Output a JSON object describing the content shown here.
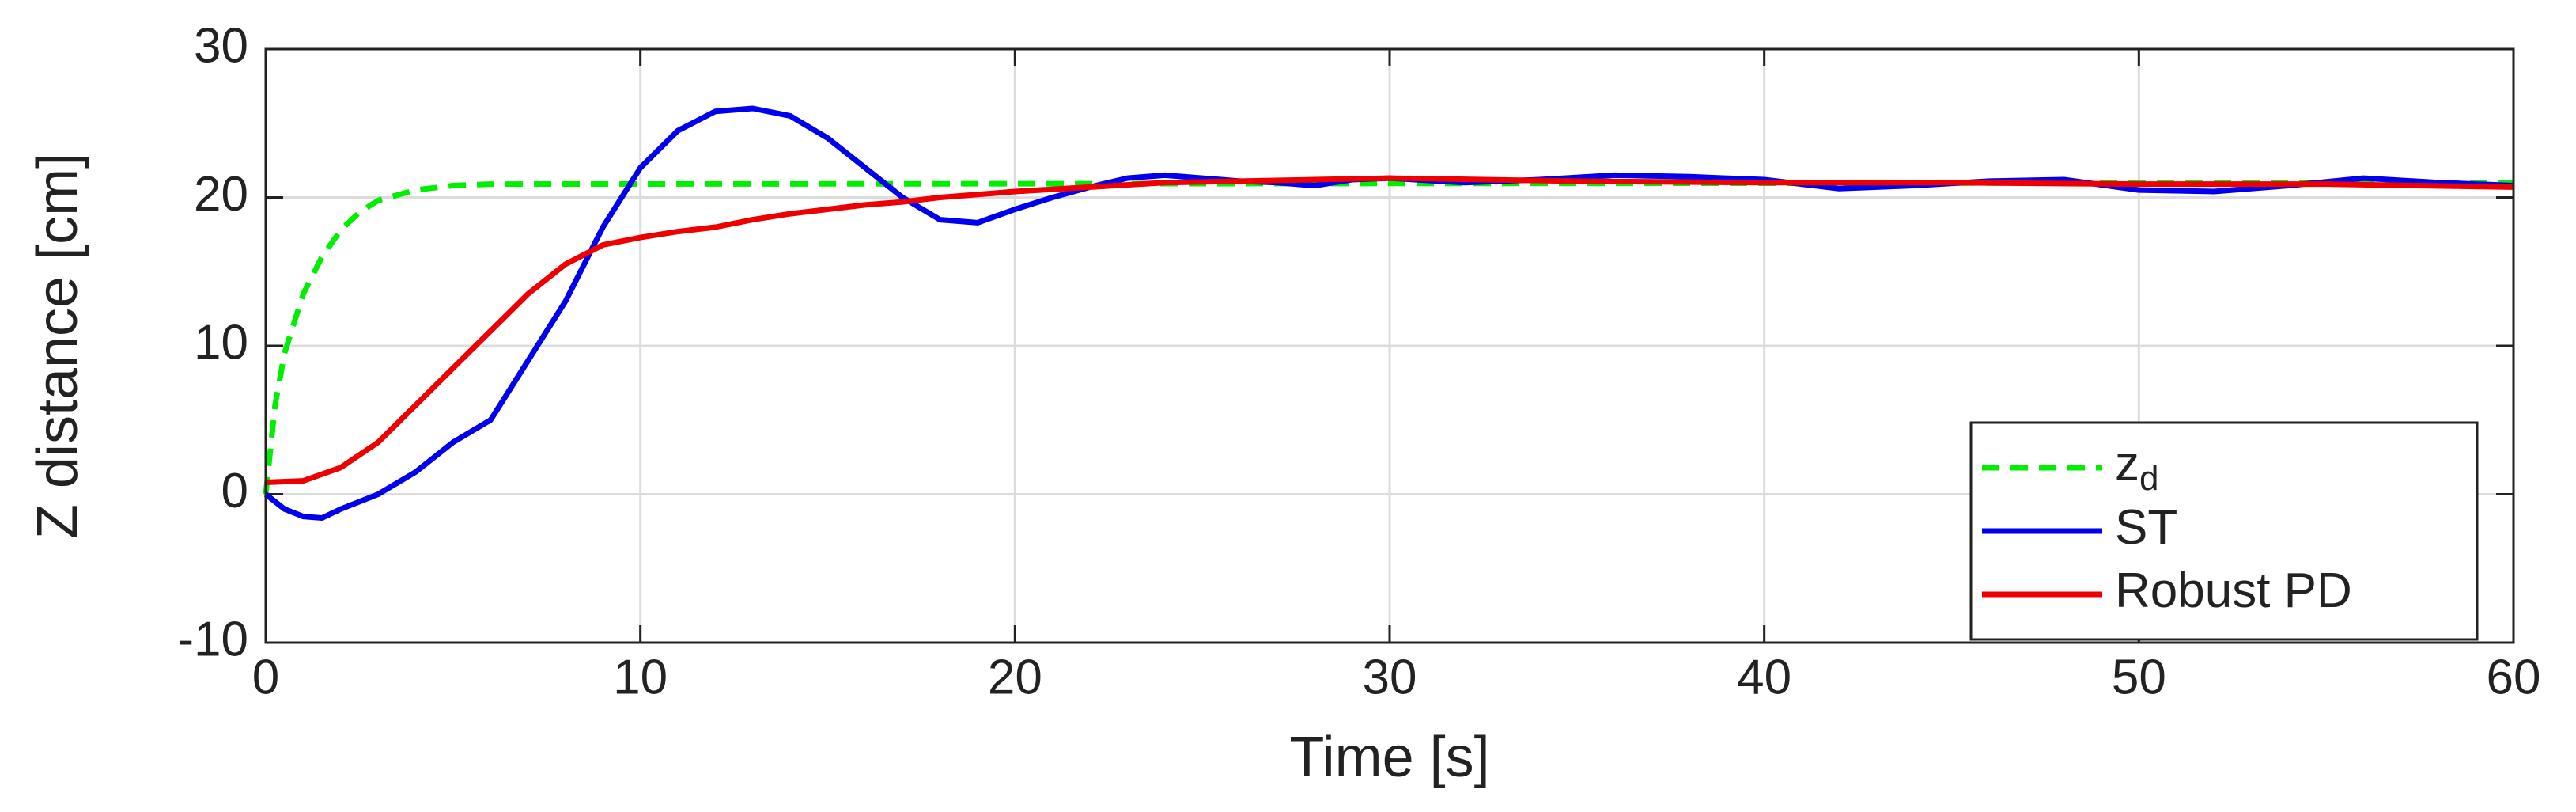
{
  "chart_data": {
    "type": "line",
    "xlabel": "Time [s]",
    "ylabel": "Z distance [cm]",
    "xlim": [
      0,
      60
    ],
    "xticks": [
      0,
      10,
      20,
      30,
      40,
      50,
      60
    ],
    "ylim": [
      -10,
      30
    ],
    "yticks": [
      -10,
      0,
      10,
      20,
      30
    ],
    "grid": true,
    "legend": "lower right",
    "series": [
      {
        "name": "z",
        "subscript": "d",
        "color": "#00ee00",
        "dash": true,
        "x": [
          0,
          0.25,
          0.5,
          1,
          1.5,
          2,
          2.5,
          3,
          4,
          5,
          6,
          60
        ],
        "values": [
          0,
          6,
          9.5,
          13.5,
          16,
          17.8,
          19,
          19.8,
          20.5,
          20.8,
          20.9,
          21
        ]
      },
      {
        "name": "ST",
        "color": "#0000ee",
        "dash": false,
        "x": [
          0,
          0.5,
          1,
          1.5,
          2,
          3,
          4,
          5,
          6,
          7,
          8,
          9,
          10,
          11,
          12,
          13,
          14,
          15,
          16,
          17,
          18,
          19,
          20,
          21,
          22,
          23,
          24,
          25,
          26,
          27,
          28,
          29,
          30,
          32,
          34,
          36,
          38,
          40,
          42,
          44,
          46,
          48,
          50,
          52,
          54,
          56,
          58,
          60
        ],
        "values": [
          0,
          -1,
          -1.5,
          -1.6,
          -1,
          0,
          1.5,
          3.5,
          5,
          9,
          13,
          18,
          22,
          24.5,
          25.8,
          26,
          25.5,
          24,
          22,
          20,
          18.5,
          18.3,
          19.2,
          20,
          20.7,
          21.3,
          21.5,
          21.3,
          21.1,
          21,
          20.8,
          21.2,
          21.3,
          21,
          21.2,
          21.5,
          21.4,
          21.2,
          20.6,
          20.8,
          21.1,
          21.2,
          20.5,
          20.4,
          20.8,
          21.3,
          21,
          20.8
        ]
      },
      {
        "name": "Robust PD",
        "color": "#ee0000",
        "dash": false,
        "x": [
          0,
          1,
          2,
          3,
          4,
          5,
          6,
          7,
          8,
          9,
          10,
          11,
          12,
          13,
          14,
          15,
          16,
          17,
          18,
          19,
          20,
          22,
          24,
          26,
          28,
          30,
          35,
          40,
          45,
          50,
          55,
          60
        ],
        "values": [
          0.8,
          0.9,
          1.8,
          3.5,
          6,
          8.5,
          11,
          13.5,
          15.5,
          16.8,
          17.3,
          17.7,
          18,
          18.5,
          18.9,
          19.2,
          19.5,
          19.7,
          20,
          20.2,
          20.4,
          20.7,
          21,
          21.1,
          21.2,
          21.3,
          21.1,
          21,
          21,
          20.9,
          20.9,
          20.7
        ]
      }
    ]
  }
}
